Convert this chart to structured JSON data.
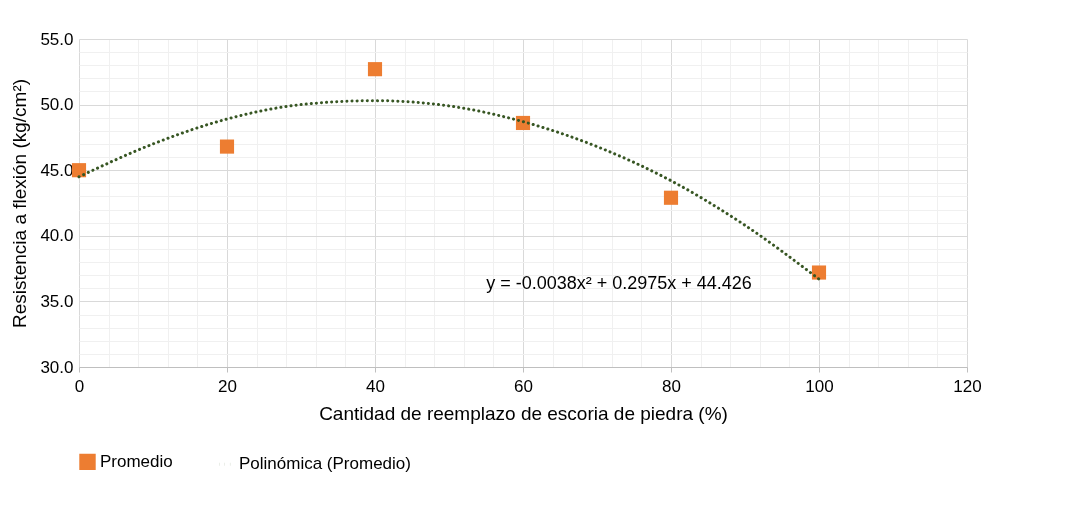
{
  "chart_data": {
    "type": "scatter",
    "xlabel": "Cantidad de reemplazo de escoria de piedra (%)",
    "ylabel": "Resistencia a flexión (kg/cm²)",
    "x": [
      0,
      20,
      40,
      60,
      80,
      100
    ],
    "series": [
      {
        "name": "Promedio",
        "type": "scatter",
        "color": "#ed7d31",
        "marker": "square",
        "values": [
          45.0,
          46.8,
          52.7,
          48.6,
          42.9,
          37.2
        ]
      },
      {
        "name": "Polinómica (Promedio)",
        "type": "line",
        "color": "#375623",
        "line_style": "dotted",
        "marker": "none",
        "x": [
          0,
          10,
          20,
          30,
          40,
          50,
          60,
          70,
          80,
          90,
          100
        ],
        "values": [
          44.5,
          47.0,
          48.9,
          50.0,
          50.3,
          49.9,
          48.7,
          46.8,
          44.2,
          40.8,
          36.7
        ]
      }
    ],
    "xlim": [
      0,
      120
    ],
    "xticks": [
      0,
      {
        "value": 4,
        "label": null
      },
      {
        "value": 8,
        "label": null
      },
      {
        "value": 12,
        "label": null
      },
      {
        "value": 16,
        "label": null
      },
      20,
      {
        "value": 24,
        "label": null
      },
      {
        "value": 28,
        "label": null
      },
      {
        "value": 32,
        "label": null
      },
      {
        "value": 36,
        "label": null
      },
      40,
      {
        "value": 44,
        "label": null
      },
      {
        "value": 48,
        "label": null
      },
      {
        "value": 52,
        "label": null
      },
      {
        "value": 56,
        "label": null
      },
      60,
      {
        "value": 64,
        "label": null
      },
      {
        "value": 68,
        "label": null
      },
      {
        "value": 72,
        "label": null
      },
      {
        "value": 76,
        "label": null
      },
      80,
      {
        "value": 84,
        "label": null
      },
      {
        "value": 88,
        "label": null
      },
      {
        "value": 92,
        "label": null
      },
      {
        "value": 96,
        "label": null
      },
      100,
      {
        "value": 104,
        "label": null
      },
      {
        "value": 108,
        "label": null
      },
      {
        "value": 112,
        "label": null
      },
      {
        "value": 116,
        "label": null
      },
      120
    ],
    "ylim": [
      30,
      55
    ],
    "yticks": [
      {
        "value": 30,
        "label": "30.0"
      },
      {
        "value": 31,
        "label": null
      },
      {
        "value": 32,
        "label": null
      },
      {
        "value": 33,
        "label": null
      },
      {
        "value": 34,
        "label": null
      },
      {
        "value": 35,
        "label": "35.0"
      },
      {
        "value": 36,
        "label": null
      },
      {
        "value": 37,
        "label": null
      },
      {
        "value": 38,
        "label": null
      },
      {
        "value": 39,
        "label": null
      },
      {
        "value": 40,
        "label": "40.0"
      },
      {
        "value": 41,
        "label": null
      },
      {
        "value": 42,
        "label": null
      },
      {
        "value": 43,
        "label": null
      },
      {
        "value": 44,
        "label": null
      },
      {
        "value": 45,
        "label": "45.0"
      },
      {
        "value": 46,
        "label": null
      },
      {
        "value": 47,
        "label": null
      },
      {
        "value": 48,
        "label": null
      },
      {
        "value": 49,
        "label": null
      },
      {
        "value": 50,
        "label": "50.0"
      },
      {
        "value": 51,
        "label": null
      },
      {
        "value": 52,
        "label": null
      },
      {
        "value": 53,
        "label": null
      },
      {
        "value": 54,
        "label": null
      },
      {
        "value": 55,
        "label": "55.0"
      }
    ],
    "annotations": [
      "y = -0.0038x² + 0.2975x + 44.426"
    ],
    "grid": true,
    "legend": "bottom"
  }
}
